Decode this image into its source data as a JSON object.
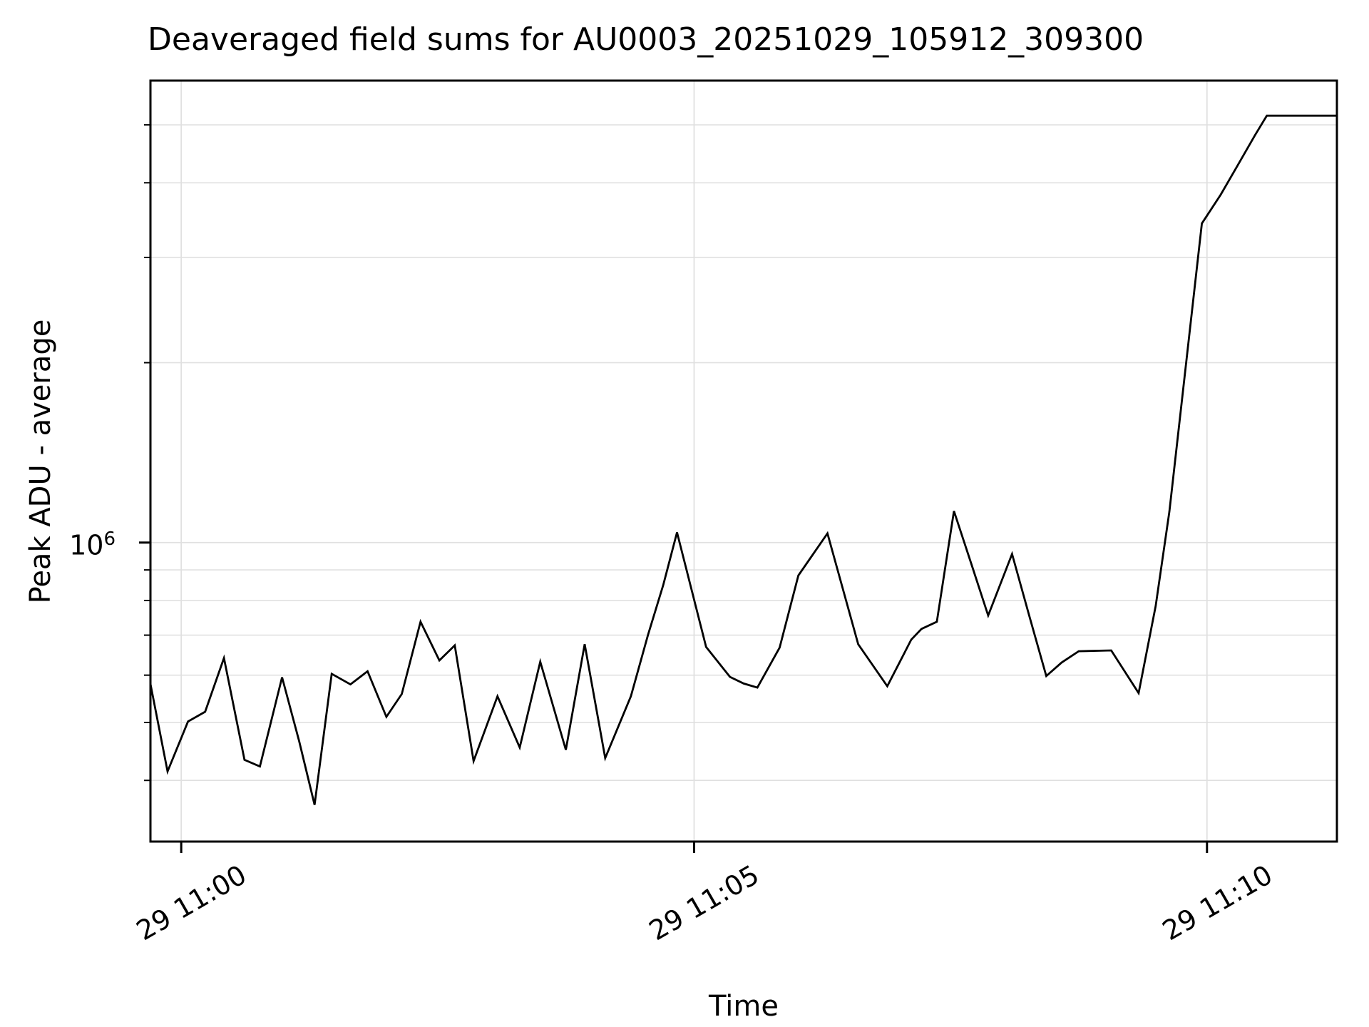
{
  "figure": {
    "background": "#ffffff",
    "text_color": "#000000"
  },
  "chart_data": {
    "type": "line",
    "title": "Deaveraged field sums for AU0003_20251029_105912_309300",
    "xlabel": "Time",
    "ylabel": "Peak ADU - average",
    "y_scale": "log",
    "x_unit": "seconds after 2025-10-29 11:00:00",
    "line_color": "#000000",
    "grid_color": "#e0e0e0",
    "spine_color": "#000000",
    "legend": "none",
    "grid": "on",
    "xlim": [
      -18,
      676
    ],
    "ylim": [
      316000,
      5930000
    ],
    "x_ticks": [
      {
        "t": 0,
        "label": "29 11:00"
      },
      {
        "t": 300,
        "label": "29 11:05"
      },
      {
        "t": 600,
        "label": "29 11:10"
      }
    ],
    "y_major_tick": {
      "value": 1000000,
      "label_base": "10",
      "label_exp": "6"
    },
    "y_major_gridlines": [
      1000000
    ],
    "y_minor_gridlines": [
      400000,
      500000,
      600000,
      700000,
      800000,
      900000,
      2000000,
      3000000,
      4000000,
      5000000
    ],
    "points": [
      [
        -18,
        580000
      ],
      [
        -8,
        414000
      ],
      [
        4,
        502000
      ],
      [
        14,
        521000
      ],
      [
        25,
        641000
      ],
      [
        37,
        433000
      ],
      [
        46,
        422000
      ],
      [
        59,
        595000
      ],
      [
        69,
        465000
      ],
      [
        78,
        364000
      ],
      [
        88,
        603000
      ],
      [
        99,
        579000
      ],
      [
        109,
        609000
      ],
      [
        120,
        511000
      ],
      [
        129,
        558000
      ],
      [
        140,
        737000
      ],
      [
        151,
        635000
      ],
      [
        160,
        673000
      ],
      [
        171,
        431000
      ],
      [
        185,
        553000
      ],
      [
        198,
        454000
      ],
      [
        210,
        632000
      ],
      [
        225,
        450000
      ],
      [
        236,
        676000
      ],
      [
        248,
        436000
      ],
      [
        263,
        553000
      ],
      [
        273,
        700000
      ],
      [
        282,
        850000
      ],
      [
        290,
        1040000
      ],
      [
        307,
        669000
      ],
      [
        321,
        596000
      ],
      [
        329,
        581000
      ],
      [
        337,
        572000
      ],
      [
        350,
        667000
      ],
      [
        361,
        881000
      ],
      [
        378,
        1036000
      ],
      [
        396,
        676000
      ],
      [
        413,
        575000
      ],
      [
        427,
        688000
      ],
      [
        433,
        717000
      ],
      [
        442,
        737000
      ],
      [
        452,
        1129000
      ],
      [
        462,
        924000
      ],
      [
        472,
        755000
      ],
      [
        486,
        957000
      ],
      [
        496,
        755000
      ],
      [
        506,
        598000
      ],
      [
        515,
        630000
      ],
      [
        525,
        658000
      ],
      [
        544,
        660000
      ],
      [
        560,
        560000
      ],
      [
        570,
        783000
      ],
      [
        578,
        1126000
      ],
      [
        597,
        3420000
      ],
      [
        608,
        3820000
      ],
      [
        618,
        4280000
      ],
      [
        628,
        4800000
      ],
      [
        635,
        5180000
      ],
      [
        645,
        5180000
      ],
      [
        655,
        5180000
      ],
      [
        665,
        5180000
      ],
      [
        676,
        5180000
      ]
    ]
  }
}
